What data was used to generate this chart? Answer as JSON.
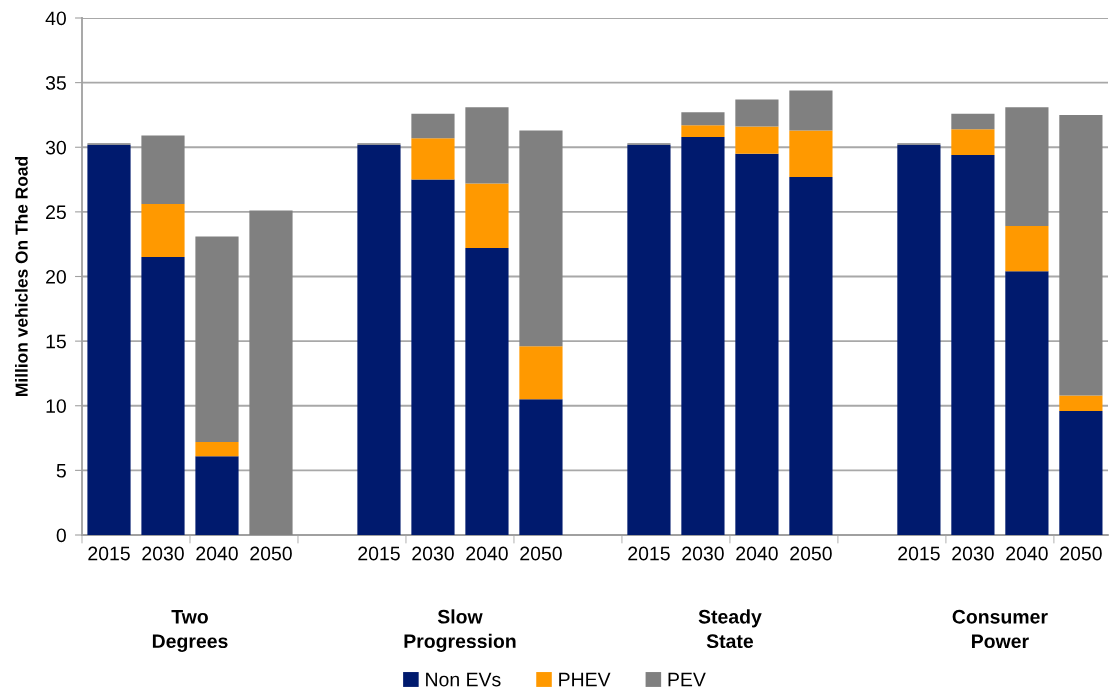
{
  "chart_data": {
    "type": "bar",
    "stacked": true,
    "ylabel": "Million vehicles On The Road",
    "categories": [
      "2015",
      "2030",
      "2040",
      "2050",
      null,
      "2015",
      "2030",
      "2040",
      "2050",
      null,
      "2015",
      "2030",
      "2040",
      "2050",
      null,
      "2015",
      "2030",
      "2040",
      "2050"
    ],
    "series": [
      {
        "name": "Non EVs",
        "color": "#001a6e",
        "values": [
          30.2,
          21.5,
          6.1,
          0,
          null,
          30.2,
          27.5,
          22.2,
          10.5,
          null,
          30.2,
          30.8,
          29.5,
          27.7,
          null,
          30.2,
          29.4,
          20.4,
          9.6
        ]
      },
      {
        "name": "PHEV",
        "color": "#ff9900",
        "values": [
          0,
          4.1,
          1.1,
          0,
          null,
          0,
          3.2,
          5.0,
          4.1,
          null,
          0,
          0.9,
          2.1,
          3.6,
          null,
          0,
          2.0,
          3.5,
          1.2
        ]
      },
      {
        "name": "PEV",
        "color": "#808080",
        "values": [
          0.1,
          5.3,
          15.9,
          25.1,
          null,
          0.1,
          1.9,
          5.9,
          16.7,
          null,
          0.1,
          1.0,
          2.1,
          3.1,
          null,
          0.1,
          1.2,
          9.2,
          21.7
        ]
      }
    ],
    "annotations": [
      "Two\nDegrees",
      "Slow\nProgression",
      "Steady\nState",
      "Consumer\nPower"
    ],
    "ylim": [
      0,
      40
    ],
    "yticks": [
      0,
      5,
      10,
      15,
      20,
      25,
      30,
      35,
      40
    ],
    "grid": "y",
    "legend": "bottom"
  }
}
